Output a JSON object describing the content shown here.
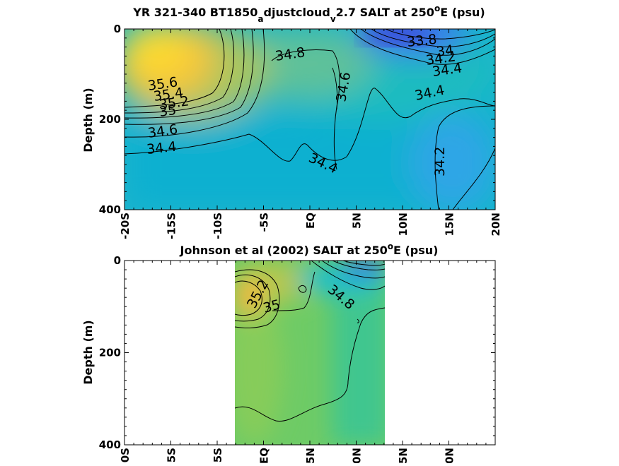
{
  "chart_data": [
    {
      "type": "heatmap",
      "title_parts": {
        "pre": "YR 321-340 BT1850",
        "sub1": "a",
        "mid": "djustcloud",
        "sub2": "v",
        "post1": "2.7 SALT at 250",
        "sup": "o",
        "post2": "E (psu)"
      },
      "ylabel": "Depth (m)",
      "yticks": [
        "0",
        "200",
        "400"
      ],
      "ylim": [
        0,
        400
      ],
      "xlim": [
        -20,
        20
      ],
      "xticks": [
        "-20S",
        "-15S",
        "-10S",
        "-5S",
        "EQ",
        "5N",
        "10N",
        "15N",
        "20N"
      ],
      "contour_labels": [
        "35.6",
        "35.4",
        "35.2",
        "35",
        "34.6",
        "34.4",
        "34.8",
        "34.6",
        "34.4",
        "34.4",
        "34.2",
        "33.8",
        "34",
        "34.2",
        "34.4"
      ]
    },
    {
      "type": "heatmap",
      "title_parts": {
        "pre": "Johnson et al (2002) SALT at 250",
        "sup": "o",
        "post": "E (psu)"
      },
      "ylabel": "Depth (m)",
      "yticks": [
        "0",
        "200",
        "400"
      ],
      "ylim": [
        0,
        400
      ],
      "xlim": [
        -20,
        20
      ],
      "xticks": [
        "0S",
        "5S",
        "5S",
        "EQ",
        "5N",
        "0N",
        "5N",
        "0N"
      ],
      "contour_labels": [
        "35.2",
        "35",
        "34.8"
      ]
    }
  ]
}
